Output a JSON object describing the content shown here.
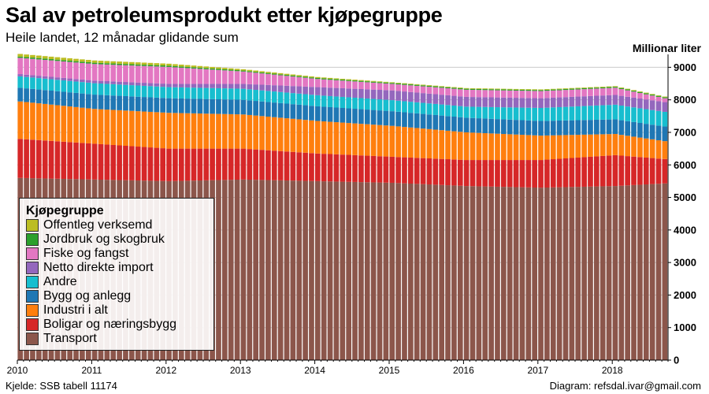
{
  "header": {
    "title": "Sal av petroleumsprodukt etter kjøpegruppe",
    "subtitle": "Heile landet, 12 månadar glidande sum"
  },
  "footer": {
    "source": "Kjelde: SSB tabell 11174",
    "credit": "Diagram: refsdal.ivar@gmail.com"
  },
  "chart_data": {
    "type": "bar",
    "stacked": true,
    "title": "Sal av petroleumsprodukt etter kjøpegruppe",
    "subtitle": "Heile landet, 12 månadar glidande sum",
    "ylabel": "Millionar liter",
    "ylim": [
      0,
      9300
    ],
    "yticks": [
      0,
      1000,
      2000,
      3000,
      4000,
      5000,
      6000,
      7000,
      8000,
      9000
    ],
    "x_tick_labels": [
      "2010",
      "2011",
      "2012",
      "2013",
      "2014",
      "2015",
      "2016",
      "2017",
      "2018"
    ],
    "legend_title": "Kjøpegruppe",
    "legend_position": "bottom-left",
    "y_axis_position": "right",
    "grid": "horizontal",
    "frequency": "monthly",
    "start": "2010-01",
    "months": 105,
    "anchor_months": [
      0,
      12,
      24,
      36,
      48,
      60,
      72,
      84,
      96,
      104
    ],
    "series": [
      {
        "name": "Transport",
        "color": "#8c564b",
        "values": [
          5600,
          5550,
          5500,
          5550,
          5500,
          5450,
          5350,
          5300,
          5350,
          5430
        ]
      },
      {
        "name": "Boligar og næringsbygg",
        "color": "#d62728",
        "values": [
          1200,
          1100,
          1000,
          950,
          850,
          800,
          800,
          850,
          950,
          750
        ]
      },
      {
        "name": "Industri i alt",
        "color": "#ff7f0e",
        "values": [
          1150,
          1070,
          1100,
          1050,
          1000,
          950,
          850,
          750,
          650,
          550
        ]
      },
      {
        "name": "Bygg og anlegg",
        "color": "#1f77b4",
        "values": [
          420,
          440,
          450,
          450,
          450,
          450,
          450,
          450,
          450,
          450
        ]
      },
      {
        "name": "Andre",
        "color": "#17becf",
        "values": [
          350,
          350,
          340,
          340,
          340,
          340,
          340,
          400,
          450,
          450
        ]
      },
      {
        "name": "Netto direkte import",
        "color": "#9467bd",
        "values": [
          70,
          80,
          100,
          150,
          250,
          300,
          300,
          300,
          300,
          300
        ]
      },
      {
        "name": "Fiske og fangst",
        "color": "#e377c2",
        "values": [
          500,
          510,
          520,
          380,
          250,
          200,
          220,
          220,
          220,
          120
        ]
      },
      {
        "name": "Jordbruk og skogbruk",
        "color": "#2ca02c",
        "values": [
          40,
          40,
          40,
          30,
          30,
          30,
          30,
          30,
          30,
          30
        ]
      },
      {
        "name": "Offentleg verksemd",
        "color": "#bcbd22",
        "values": [
          80,
          70,
          60,
          40,
          30,
          20,
          20,
          20,
          20,
          20
        ]
      }
    ]
  }
}
